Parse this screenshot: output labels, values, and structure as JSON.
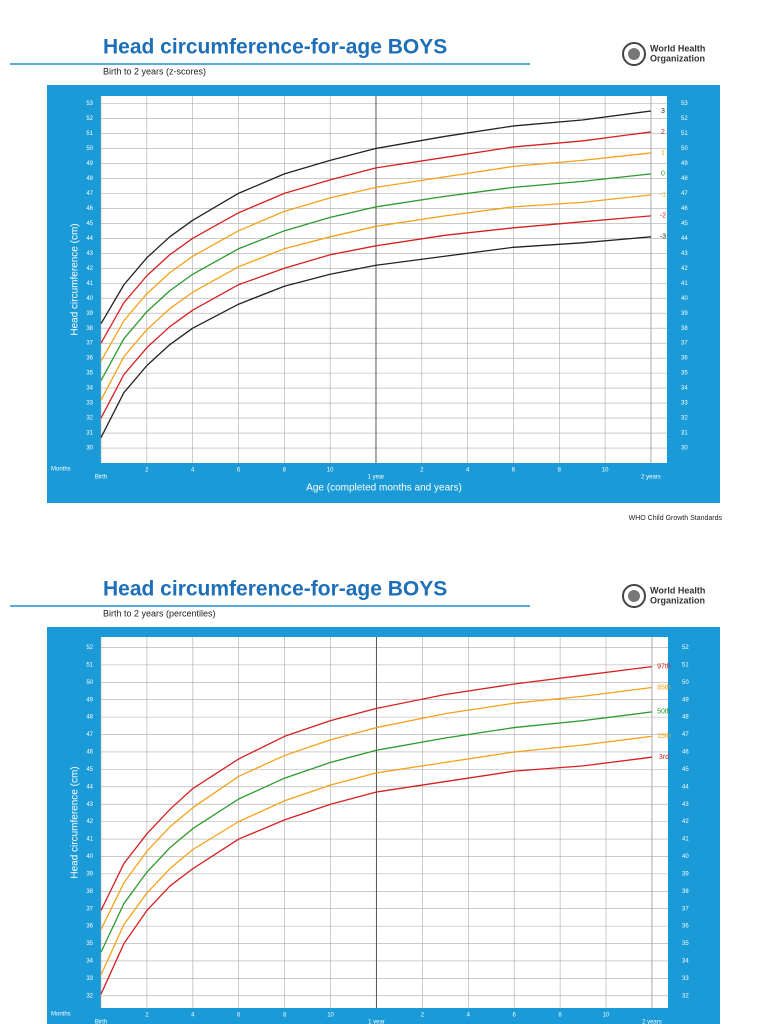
{
  "logo_text": [
    "World Health",
    "Organization"
  ],
  "footer": "WHO Child Growth Standards",
  "chart_data": [
    {
      "type": "line",
      "title": "Head circumference-for-age  BOYS",
      "subtitle": "Birth to 2 years (z-scores)",
      "ylabel": "Head circumference (cm)",
      "xlabel": "Age (completed months and years)",
      "months_label": "Months",
      "x": [
        0,
        1,
        2,
        3,
        4,
        6,
        8,
        10,
        12,
        15,
        18,
        21,
        24
      ],
      "xlim": [
        0,
        24.7
      ],
      "xticks": [
        {
          "value": 0,
          "label": "Birth"
        },
        2,
        4,
        6,
        8,
        10,
        {
          "value": 12,
          "label": "1 year"
        },
        {
          "value": 14,
          "label": "2"
        },
        {
          "value": 16,
          "label": "4"
        },
        {
          "value": 18,
          "label": "6"
        },
        {
          "value": 20,
          "label": "8"
        },
        {
          "value": 22,
          "label": "10"
        },
        {
          "value": 24,
          "label": "2 years"
        }
      ],
      "ylim": [
        29,
        53.5
      ],
      "yticks": [
        30,
        31,
        32,
        33,
        34,
        35,
        36,
        37,
        38,
        39,
        40,
        41,
        42,
        43,
        44,
        45,
        46,
        47,
        48,
        49,
        50,
        51,
        52,
        53
      ],
      "grid": true,
      "series": [
        {
          "name": "3",
          "color": "#222222",
          "values": [
            38.3,
            40.9,
            42.7,
            44.1,
            45.2,
            47.0,
            48.3,
            49.2,
            50.0,
            50.8,
            51.5,
            51.9,
            52.5
          ]
        },
        {
          "name": "2",
          "color": "#d62020",
          "values": [
            37.0,
            39.7,
            41.5,
            42.9,
            44.0,
            45.7,
            47.0,
            47.9,
            48.7,
            49.4,
            50.1,
            50.5,
            51.1
          ]
        },
        {
          "name": "1",
          "color": "#f5a11a",
          "values": [
            35.8,
            38.5,
            40.3,
            41.7,
            42.8,
            44.5,
            45.8,
            46.7,
            47.4,
            48.1,
            48.8,
            49.2,
            49.7
          ]
        },
        {
          "name": "0",
          "color": "#2a9a2a",
          "values": [
            34.5,
            37.3,
            39.1,
            40.5,
            41.6,
            43.3,
            44.5,
            45.4,
            46.1,
            46.8,
            47.4,
            47.8,
            48.3
          ]
        },
        {
          "name": "-1",
          "color": "#f5a11a",
          "values": [
            33.2,
            36.1,
            37.9,
            39.3,
            40.4,
            42.1,
            43.3,
            44.1,
            44.8,
            45.5,
            46.1,
            46.4,
            46.9
          ]
        },
        {
          "name": "-2",
          "color": "#d62020",
          "values": [
            32.0,
            34.9,
            36.7,
            38.1,
            39.2,
            40.9,
            42.0,
            42.9,
            43.5,
            44.2,
            44.7,
            45.1,
            45.5
          ]
        },
        {
          "name": "-3",
          "color": "#222222",
          "values": [
            30.7,
            33.7,
            35.5,
            36.9,
            38.0,
            39.6,
            40.8,
            41.6,
            42.2,
            42.8,
            43.4,
            43.7,
            44.1
          ]
        }
      ]
    },
    {
      "type": "line",
      "title": "Head circumference-for-age  BOYS",
      "subtitle": "Birth to 2 years (percentiles)",
      "ylabel": "Head circumference (cm)",
      "months_label": "Months",
      "x": [
        0,
        1,
        2,
        3,
        4,
        6,
        8,
        10,
        12,
        15,
        18,
        21,
        24
      ],
      "xlim": [
        0,
        24.7
      ],
      "xticks": [
        {
          "value": 0,
          "label": "Birth"
        },
        2,
        4,
        6,
        8,
        10,
        {
          "value": 12,
          "label": "1 year"
        },
        {
          "value": 14,
          "label": "2"
        },
        {
          "value": 16,
          "label": "4"
        },
        {
          "value": 18,
          "label": "6"
        },
        {
          "value": 20,
          "label": "8"
        },
        {
          "value": 22,
          "label": "10"
        },
        {
          "value": 24,
          "label": "2 years"
        }
      ],
      "ylim": [
        31.3,
        52.6
      ],
      "yticks": [
        32,
        33,
        34,
        35,
        36,
        37,
        38,
        39,
        40,
        41,
        42,
        43,
        44,
        45,
        46,
        47,
        48,
        49,
        50,
        51,
        52
      ],
      "grid": true,
      "series": [
        {
          "name": "97th",
          "color": "#d62020",
          "values": [
            36.9,
            39.6,
            41.3,
            42.7,
            43.9,
            45.6,
            46.9,
            47.8,
            48.5,
            49.3,
            49.9,
            50.4,
            50.9
          ]
        },
        {
          "name": "85th",
          "color": "#f5a11a",
          "values": [
            35.8,
            38.5,
            40.3,
            41.7,
            42.8,
            44.6,
            45.8,
            46.7,
            47.4,
            48.2,
            48.8,
            49.2,
            49.7
          ]
        },
        {
          "name": "50th",
          "color": "#2a9a2a",
          "values": [
            34.5,
            37.3,
            39.1,
            40.5,
            41.6,
            43.3,
            44.5,
            45.4,
            46.1,
            46.8,
            47.4,
            47.8,
            48.3
          ]
        },
        {
          "name": "15th",
          "color": "#f5a11a",
          "values": [
            33.2,
            36.1,
            37.9,
            39.3,
            40.4,
            42.0,
            43.2,
            44.1,
            44.8,
            45.4,
            46.0,
            46.4,
            46.9
          ]
        },
        {
          "name": "3rd",
          "color": "#d62020",
          "values": [
            32.1,
            35.0,
            36.9,
            38.3,
            39.3,
            41.0,
            42.1,
            43.0,
            43.7,
            44.3,
            44.9,
            45.2,
            45.7
          ]
        }
      ]
    }
  ]
}
